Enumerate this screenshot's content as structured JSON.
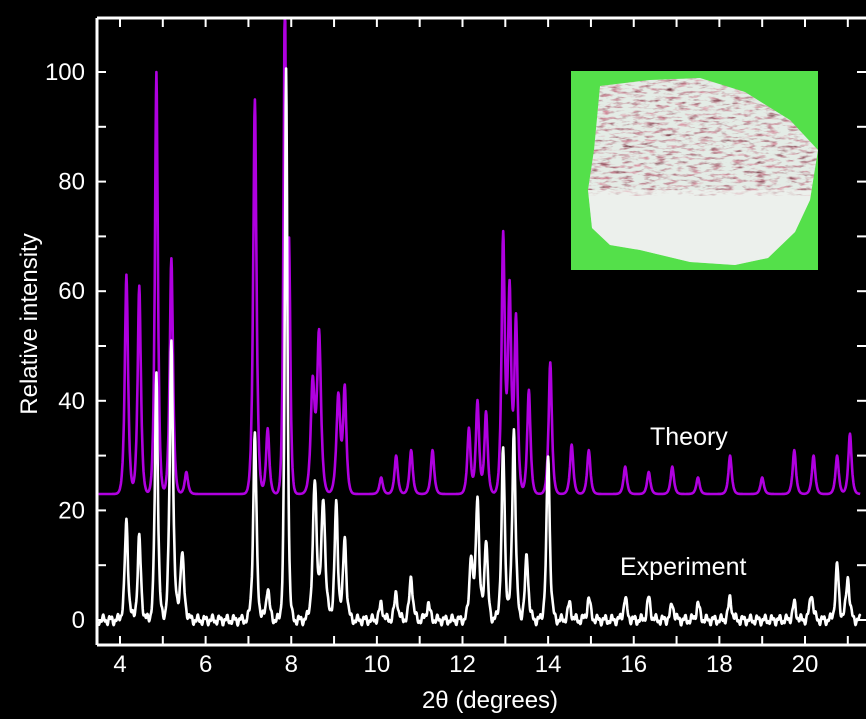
{
  "chart_data": {
    "type": "line",
    "title": "",
    "xlabel": "2θ (degrees)",
    "ylabel": "Relative intensity",
    "xlim": [
      3.5,
      21.3
    ],
    "ylim": [
      -4,
      110
    ],
    "x_ticks": [
      4,
      6,
      8,
      10,
      12,
      14,
      16,
      18,
      20
    ],
    "y_ticks": [
      0,
      20,
      40,
      60,
      80,
      100
    ],
    "grid": false,
    "background": "#000000",
    "axis_color": "#ffffff",
    "inset": {
      "description": "photo of sample",
      "background": "#54e04a"
    },
    "series": [
      {
        "name": "Theory",
        "color": "#b000e0",
        "baseline": 23,
        "peaks": [
          [
            4.15,
            63,
            0.05
          ],
          [
            4.45,
            61,
            0.05
          ],
          [
            4.85,
            100,
            0.045
          ],
          [
            5.2,
            66,
            0.05
          ],
          [
            5.55,
            27,
            0.05
          ],
          [
            7.15,
            95,
            0.05
          ],
          [
            7.45,
            35,
            0.05
          ],
          [
            7.85,
            112,
            0.04
          ],
          [
            7.95,
            65,
            0.04
          ],
          [
            8.5,
            43,
            0.06
          ],
          [
            8.65,
            52,
            0.06
          ],
          [
            9.1,
            41,
            0.06
          ],
          [
            9.25,
            42,
            0.05
          ],
          [
            10.1,
            26,
            0.05
          ],
          [
            10.45,
            30,
            0.05
          ],
          [
            10.8,
            31,
            0.05
          ],
          [
            11.3,
            31,
            0.05
          ],
          [
            12.15,
            35,
            0.05
          ],
          [
            12.35,
            40,
            0.05
          ],
          [
            12.55,
            38,
            0.05
          ],
          [
            12.95,
            70,
            0.05
          ],
          [
            13.1,
            60,
            0.05
          ],
          [
            13.25,
            55,
            0.05
          ],
          [
            13.55,
            42,
            0.05
          ],
          [
            14.05,
            47,
            0.05
          ],
          [
            14.55,
            32,
            0.05
          ],
          [
            14.95,
            31,
            0.05
          ],
          [
            15.8,
            28,
            0.05
          ],
          [
            16.35,
            27,
            0.05
          ],
          [
            16.9,
            28,
            0.05
          ],
          [
            17.5,
            26,
            0.05
          ],
          [
            18.25,
            30,
            0.05
          ],
          [
            19.0,
            26,
            0.05
          ],
          [
            19.75,
            31,
            0.05
          ],
          [
            20.2,
            30,
            0.05
          ],
          [
            20.75,
            30,
            0.05
          ],
          [
            21.05,
            34,
            0.05
          ]
        ]
      },
      {
        "name": "Experiment",
        "color": "#ffffff",
        "baseline": 0,
        "peaks": [
          [
            4.15,
            18,
            0.05
          ],
          [
            4.45,
            15,
            0.05
          ],
          [
            4.85,
            45,
            0.045
          ],
          [
            5.2,
            51,
            0.05
          ],
          [
            5.45,
            12,
            0.06
          ],
          [
            7.15,
            34,
            0.05
          ],
          [
            7.45,
            6,
            0.05
          ],
          [
            7.88,
            100,
            0.04
          ],
          [
            8.55,
            25,
            0.06
          ],
          [
            8.75,
            22,
            0.06
          ],
          [
            9.05,
            21,
            0.05
          ],
          [
            9.25,
            15,
            0.05
          ],
          [
            10.1,
            3,
            0.05
          ],
          [
            10.45,
            5,
            0.05
          ],
          [
            10.8,
            8,
            0.05
          ],
          [
            11.2,
            3,
            0.05
          ],
          [
            12.2,
            12,
            0.05
          ],
          [
            12.35,
            23,
            0.05
          ],
          [
            12.55,
            15,
            0.05
          ],
          [
            12.95,
            31,
            0.05
          ],
          [
            13.2,
            35,
            0.05
          ],
          [
            13.5,
            12,
            0.05
          ],
          [
            14.0,
            30,
            0.05
          ],
          [
            14.5,
            3,
            0.05
          ],
          [
            14.95,
            4,
            0.05
          ],
          [
            15.8,
            4,
            0.05
          ],
          [
            16.35,
            4,
            0.05
          ],
          [
            16.9,
            3,
            0.05
          ],
          [
            17.5,
            3,
            0.05
          ],
          [
            18.25,
            4,
            0.05
          ],
          [
            19.75,
            3,
            0.05
          ],
          [
            20.15,
            5,
            0.05
          ],
          [
            20.75,
            10,
            0.05
          ],
          [
            21.0,
            8,
            0.05
          ]
        ]
      }
    ]
  }
}
